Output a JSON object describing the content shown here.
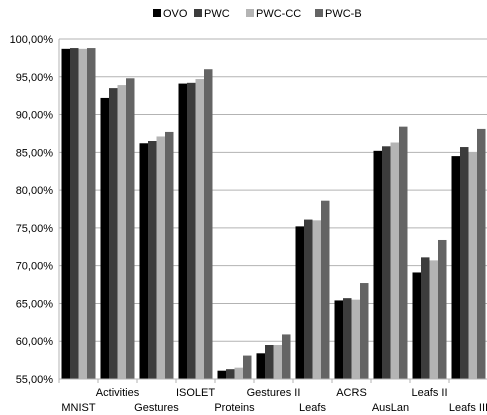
{
  "chart_data": {
    "type": "bar",
    "categories": [
      "MNIST",
      "Activities",
      "Gestures",
      "ISOLET",
      "Proteins",
      "Gestures II",
      "Leafs",
      "ACRS",
      "AusLan",
      "Leafs II",
      "Leafs III"
    ],
    "series": [
      {
        "name": "OVO",
        "color": "#000000",
        "values": [
          98.7,
          92.2,
          86.2,
          94.1,
          56.1,
          58.4,
          75.2,
          65.4,
          85.2,
          69.1,
          84.5
        ]
      },
      {
        "name": "PWC",
        "color": "#3c3c3c",
        "values": [
          98.8,
          93.5,
          86.5,
          94.2,
          56.3,
          59.5,
          76.1,
          65.7,
          85.8,
          71.1,
          85.7
        ]
      },
      {
        "name": "PWC-CC",
        "color": "#b4b4b4",
        "values": [
          98.7,
          93.9,
          87.1,
          94.7,
          56.5,
          59.5,
          76.0,
          65.5,
          86.3,
          70.7,
          85.0
        ]
      },
      {
        "name": "PWC-B",
        "color": "#646464",
        "values": [
          98.8,
          94.8,
          87.7,
          96.0,
          58.1,
          60.9,
          78.6,
          67.7,
          88.4,
          73.4,
          88.1
        ]
      }
    ],
    "y_ticks": [
      "55,00%",
      "60,00%",
      "65,00%",
      "70,00%",
      "75,00%",
      "80,00%",
      "85,00%",
      "90,00%",
      "95,00%",
      "100,00%"
    ],
    "ylim": [
      55,
      100
    ],
    "grid": true,
    "legend_position": "top"
  }
}
